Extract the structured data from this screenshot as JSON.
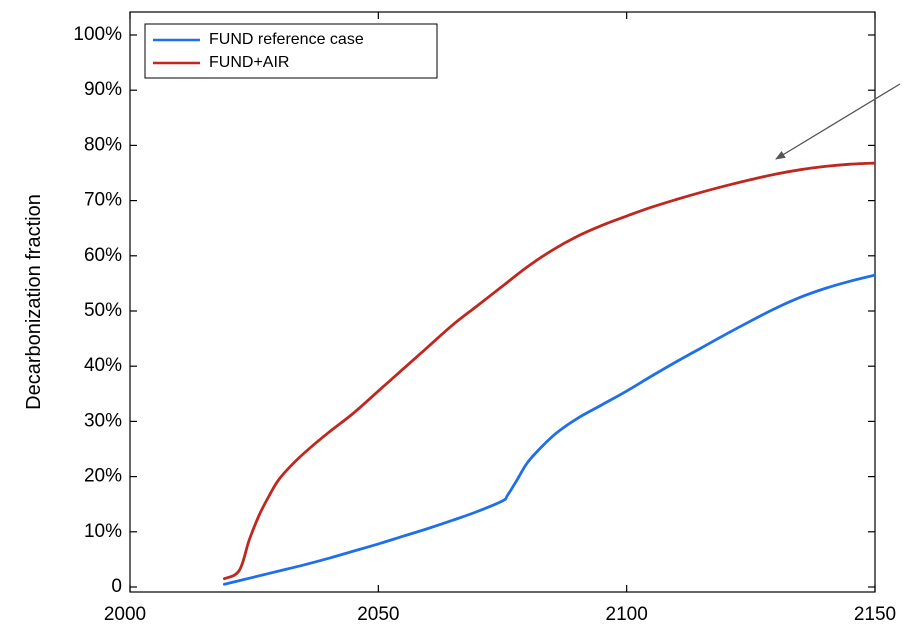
{
  "chart_data": {
    "type": "line",
    "title": "",
    "xlabel": "",
    "ylabel": "Decarbonization fraction",
    "xlim": [
      2000,
      2150
    ],
    "ylim": [
      0,
      100
    ],
    "x_ticks": [
      2000,
      2050,
      2100,
      2150
    ],
    "x_tick_labels": [
      "2000",
      "2050",
      "2100",
      "2150"
    ],
    "y_ticks": [
      0,
      10,
      20,
      30,
      40,
      50,
      60,
      70,
      80,
      90,
      100
    ],
    "y_tick_labels": [
      "0",
      "10%",
      "20%",
      "30%",
      "40%",
      "50%",
      "60%",
      "70%",
      "80%",
      "90%",
      "100%"
    ],
    "grid": false,
    "legend_position": "top-left",
    "series": [
      {
        "name": "FUND reference case",
        "color": "#1f6fe8",
        "x": [
          2019,
          2025,
          2030,
          2035,
          2040,
          2045,
          2050,
          2055,
          2060,
          2065,
          2070,
          2075,
          2076,
          2078,
          2080,
          2083,
          2086,
          2090,
          2095,
          2100,
          2105,
          2110,
          2115,
          2120,
          2125,
          2130,
          2135,
          2140,
          2145,
          2150
        ],
        "y": [
          0.5,
          1.8,
          2.9,
          4.0,
          5.2,
          6.5,
          7.8,
          9.2,
          10.6,
          12.1,
          13.7,
          15.6,
          16.6,
          19.5,
          22.5,
          25.5,
          28.0,
          30.5,
          33.0,
          35.5,
          38.2,
          40.8,
          43.3,
          45.8,
          48.2,
          50.5,
          52.5,
          54.1,
          55.4,
          56.5
        ]
      },
      {
        "name": "FUND+AIR",
        "color": "#c0271e",
        "x": [
          2019,
          2022,
          2024,
          2026,
          2028,
          2030,
          2033,
          2036,
          2040,
          2045,
          2050,
          2055,
          2060,
          2065,
          2070,
          2075,
          2080,
          2085,
          2090,
          2095,
          2100,
          2105,
          2110,
          2115,
          2120,
          2125,
          2130,
          2135,
          2140,
          2145,
          2150
        ],
        "y": [
          1.5,
          3.0,
          8.5,
          13.0,
          16.5,
          19.5,
          22.5,
          25.0,
          28.0,
          31.5,
          35.5,
          39.5,
          43.5,
          47.5,
          51.0,
          54.5,
          58.0,
          61.0,
          63.5,
          65.5,
          67.2,
          68.8,
          70.2,
          71.5,
          72.7,
          73.8,
          74.8,
          75.6,
          76.2,
          76.6,
          76.8
        ]
      }
    ]
  }
}
